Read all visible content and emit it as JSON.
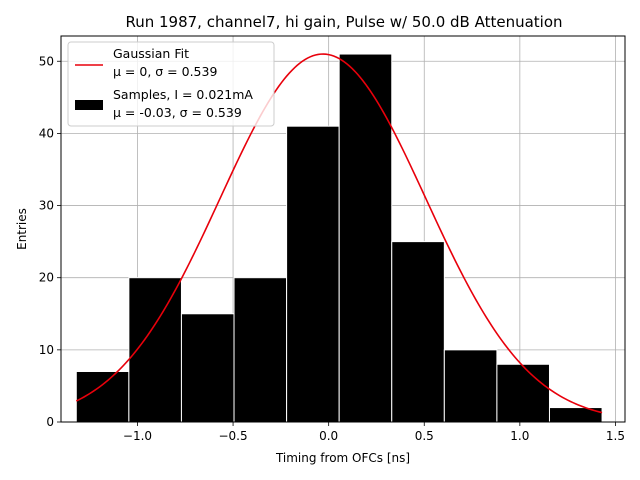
{
  "chart_data": {
    "type": "bar",
    "title": "Run 1987, channel7, hi gain, Pulse w/ 50.0 dB Attenuation",
    "xlabel": "Timing from OFCs [ns]",
    "ylabel": "Entries",
    "xlim": [
      -1.4,
      1.55
    ],
    "ylim": [
      0,
      53.5
    ],
    "grid": true,
    "legend_position": "top-left",
    "x_ticks": [
      -1.0,
      -0.5,
      0.0,
      0.5,
      1.0,
      1.5
    ],
    "x_tick_labels": [
      "−1.0",
      "−0.5",
      "0.0",
      "0.5",
      "1.0",
      "1.5"
    ],
    "y_ticks": [
      0,
      10,
      20,
      30,
      40,
      50
    ],
    "y_tick_labels": [
      "0",
      "10",
      "20",
      "30",
      "40",
      "50"
    ],
    "histogram": {
      "name": "Samples, I = 0.021mA",
      "stats": "μ = -0.03, σ = 0.539",
      "color": "#000000",
      "edge_color": "#ffffff",
      "bin_edges": [
        -1.32,
        -1.045,
        -0.77,
        -0.495,
        -0.22,
        0.055,
        0.33,
        0.605,
        0.88,
        1.155,
        1.43
      ],
      "counts": [
        7,
        20,
        15,
        20,
        41,
        51,
        25,
        10,
        8,
        2
      ]
    },
    "fit": {
      "name": "Gaussian Fit",
      "stats": "μ = 0, σ = 0.539",
      "color": "#e8000b",
      "amplitude": 51,
      "mean": -0.03,
      "sigma": 0.539,
      "x_range": [
        -1.32,
        1.43
      ]
    }
  }
}
